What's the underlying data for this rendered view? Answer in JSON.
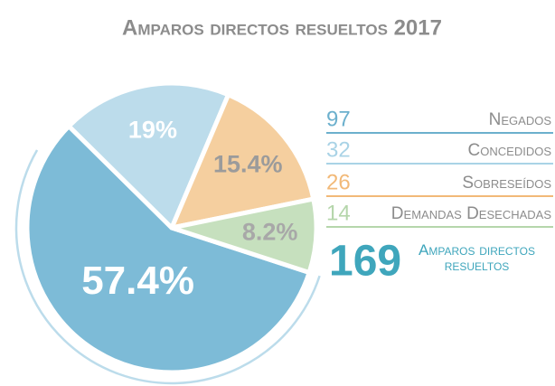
{
  "chart_data": {
    "type": "pie",
    "title": "Amparos directos resueltos 2017",
    "categories": [
      "Negados",
      "Concedidos",
      "Sobreseídos",
      "Demandas Desechadas"
    ],
    "values": [
      57.4,
      19,
      15.4,
      8.2
    ],
    "value_labels": [
      "57.4%",
      "19%",
      "15.4%",
      "8.2%"
    ],
    "counts": [
      97,
      32,
      26,
      14
    ],
    "colors": [
      "#7dbbd7",
      "#bcdceb",
      "#f5cf9f",
      "#c6e0be"
    ],
    "legend_colors": [
      "#6cb0cd",
      "#a9d3e6",
      "#f2b978",
      "#b5d6ab"
    ],
    "label_colors": [
      "#ffffff",
      "#ffffff",
      "#9b9b9b",
      "#a8a8a8"
    ],
    "total": 169,
    "total_label": "Amparos directos resueltos",
    "total_color": "#3fa6bc",
    "legend": "right"
  }
}
